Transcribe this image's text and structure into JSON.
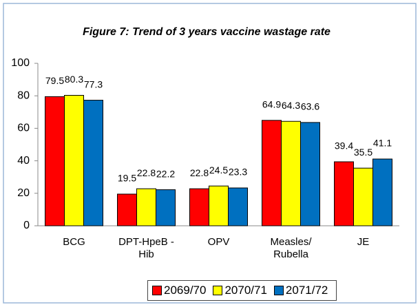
{
  "chart_data": {
    "type": "bar",
    "title": "Figure 7: Trend of 3 years vaccine wastage rate",
    "categories": [
      "BCG",
      "DPT-HpeB -\nHib",
      "OPV",
      "Measles/\nRubella",
      "JE"
    ],
    "series": [
      {
        "name": "2069/70",
        "color": "#ff0000",
        "values": [
          79.5,
          19.5,
          22.8,
          64.9,
          39.4
        ]
      },
      {
        "name": "2070/71",
        "color": "#ffff00",
        "values": [
          80.3,
          22.8,
          24.5,
          64.3,
          35.5
        ]
      },
      {
        "name": "2071/72",
        "color": "#0070c0",
        "values": [
          77.3,
          22.2,
          23.3,
          63.6,
          41.1
        ]
      }
    ],
    "ylim": [
      0,
      100
    ],
    "yticks": [
      0,
      20,
      40,
      60,
      80,
      100
    ],
    "grid": false,
    "legend": "bottom"
  }
}
